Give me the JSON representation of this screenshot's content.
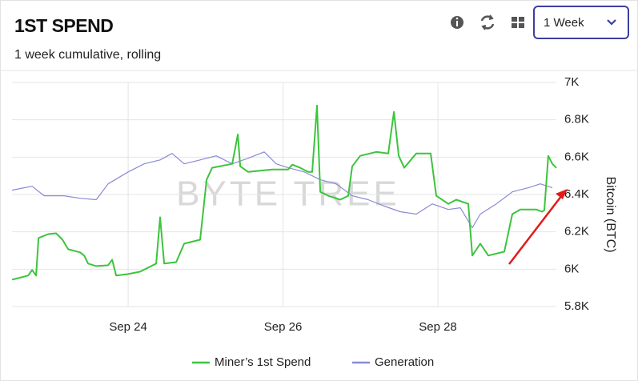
{
  "header": {
    "title": "1ST SPEND",
    "subtitle": "1 week cumulative, rolling",
    "dropdown": "1 Week"
  },
  "chart_data": {
    "type": "line",
    "watermark": "BYTE TREE",
    "y_label": "Bitcoin (BTC)",
    "xlim": [
      22.5,
      29.53
    ],
    "xticks": [
      {
        "value": 24,
        "label": "Sep 24"
      },
      {
        "value": 26,
        "label": "Sep 26"
      },
      {
        "value": 28,
        "label": "Sep 28"
      }
    ],
    "ylim": [
      5800,
      7000
    ],
    "yticks": [
      {
        "value": 5800,
        "label": "5.8K"
      },
      {
        "value": 6000,
        "label": "6K"
      },
      {
        "value": 6200,
        "label": "6.2K"
      },
      {
        "value": 6400,
        "label": "6.4K"
      },
      {
        "value": 6600,
        "label": "6.6K"
      },
      {
        "value": 6800,
        "label": "6.8K"
      },
      {
        "value": 7000,
        "label": "7K"
      }
    ],
    "grid": true,
    "series": [
      {
        "name": "Miner’s 1st Spend",
        "color": "#3cc43c",
        "x": [
          22.501,
          22.708,
          22.76,
          22.811,
          22.842,
          22.966,
          23.07,
          23.152,
          23.225,
          23.38,
          23.432,
          23.483,
          23.587,
          23.742,
          23.793,
          23.845,
          24,
          24.155,
          24.362,
          24.413,
          24.465,
          24.62,
          24.724,
          24.93,
          25.013,
          25.085,
          25.344,
          25.416,
          25.447,
          25.55,
          25.86,
          26.067,
          26.119,
          26.222,
          26.326,
          26.377,
          26.439,
          26.481,
          26.584,
          26.739,
          26.842,
          26.894,
          26.997,
          27.204,
          27.359,
          27.432,
          27.494,
          27.566,
          27.721,
          27.907,
          27.979,
          28.134,
          28.238,
          28.393,
          28.444,
          28.548,
          28.651,
          28.858,
          28.961,
          29.065,
          29.271,
          29.344,
          29.375,
          29.426,
          29.478,
          29.53
        ],
        "values": [
          5944,
          5966,
          5996,
          5966,
          6167,
          6188,
          6192,
          6158,
          6107,
          6090,
          6073,
          6030,
          6017,
          6021,
          6051,
          5966,
          5974,
          5987,
          6030,
          6278,
          6030,
          6038,
          6137,
          6158,
          6479,
          6543,
          6564,
          6722,
          6551,
          6521,
          6534,
          6534,
          6560,
          6543,
          6521,
          6521,
          6876,
          6414,
          6393,
          6372,
          6393,
          6551,
          6607,
          6628,
          6620,
          6842,
          6607,
          6543,
          6620,
          6620,
          6393,
          6350,
          6372,
          6350,
          6073,
          6137,
          6073,
          6094,
          6295,
          6320,
          6320,
          6308,
          6316,
          6607,
          6564,
          6543
        ]
      },
      {
        "name": "Generation",
        "color": "#8a8ad6",
        "x": [
          22.501,
          22.656,
          22.76,
          22.915,
          23.173,
          23.38,
          23.587,
          23.742,
          24,
          24.207,
          24.413,
          24.568,
          24.724,
          24.93,
          25.137,
          25.344,
          25.55,
          25.757,
          25.912,
          26.067,
          26.274,
          26.481,
          26.687,
          26.894,
          27.101,
          27.307,
          27.514,
          27.721,
          27.928,
          28.134,
          28.289,
          28.444,
          28.548,
          28.755,
          28.961,
          29.168,
          29.323,
          29.478
        ],
        "values": [
          6423,
          6436,
          6444,
          6393,
          6393,
          6380,
          6372,
          6457,
          6521,
          6564,
          6585,
          6620,
          6564,
          6585,
          6607,
          6564,
          6594,
          6628,
          6564,
          6543,
          6521,
          6479,
          6457,
          6393,
          6372,
          6338,
          6308,
          6295,
          6350,
          6320,
          6329,
          6222,
          6295,
          6350,
          6414,
          6436,
          6457,
          6436
        ]
      }
    ]
  }
}
